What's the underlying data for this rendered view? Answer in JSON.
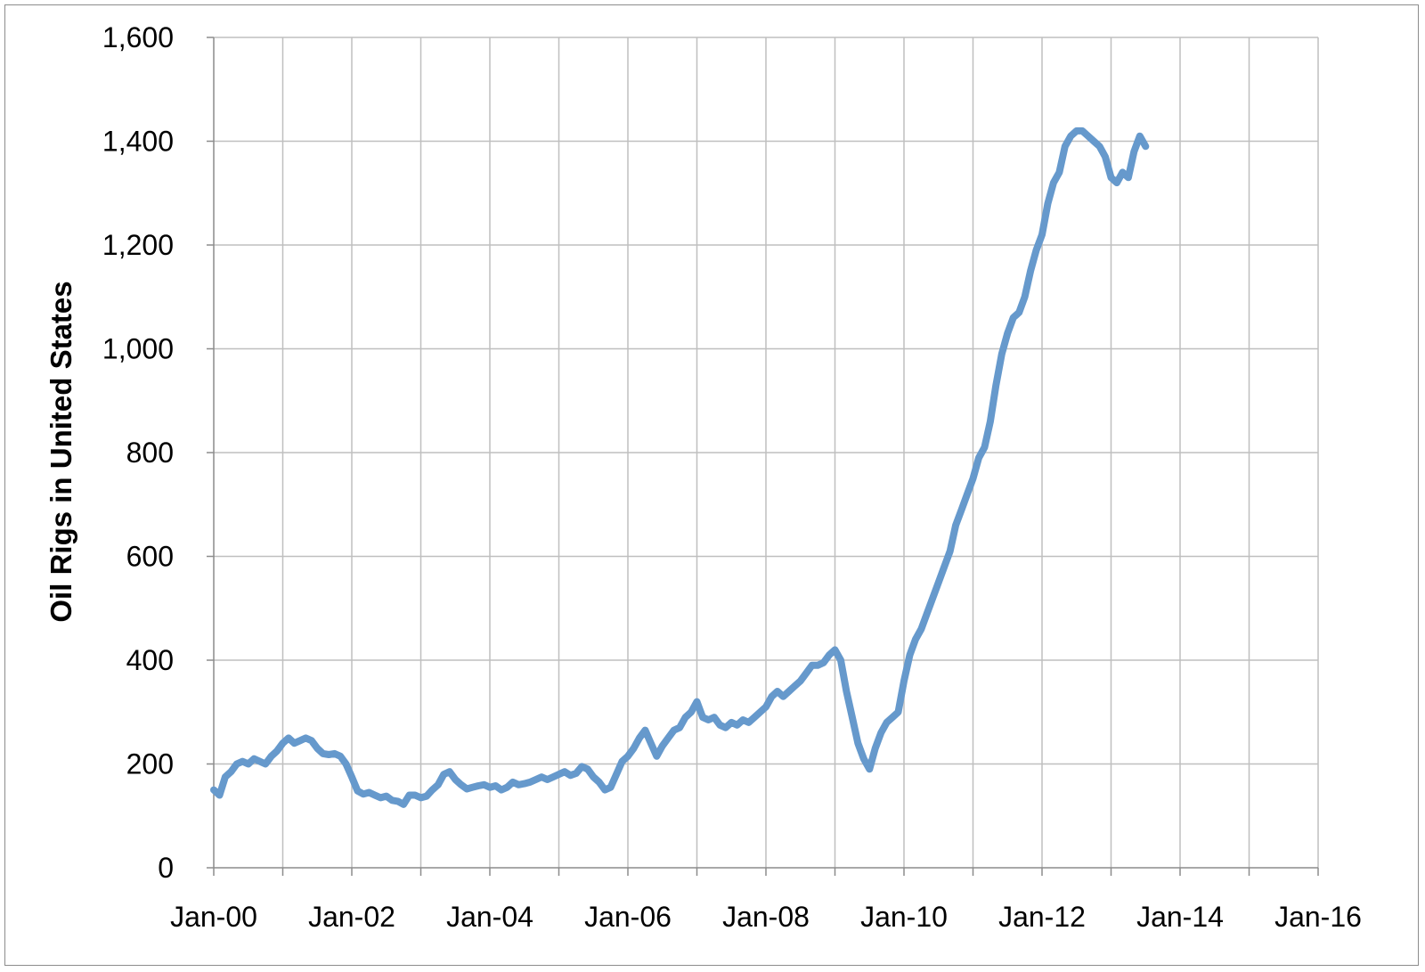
{
  "chart_data": {
    "type": "line",
    "title": "",
    "xlabel": "",
    "ylabel": "Oil Rigs in United States",
    "x_ticks": [
      "Jan-00",
      "Jan-02",
      "Jan-04",
      "Jan-06",
      "Jan-08",
      "Jan-10",
      "Jan-12",
      "Jan-14",
      "Jan-16"
    ],
    "y_ticks": [
      "0",
      "200",
      "400",
      "600",
      "800",
      "1,000",
      "1,200",
      "1,400",
      "1,600"
    ],
    "xlim": [
      "2000-01",
      "2016-01"
    ],
    "ylim": [
      0,
      1600
    ],
    "grid": true,
    "legend": "none",
    "line_color": "#6699cc",
    "series": [
      {
        "x": [
          "2000-01",
          "2000-02",
          "2000-03",
          "2000-04",
          "2000-05",
          "2000-06",
          "2000-07",
          "2000-08",
          "2000-09",
          "2000-10",
          "2000-11",
          "2000-12",
          "2001-01",
          "2001-02",
          "2001-03",
          "2001-04",
          "2001-05",
          "2001-06",
          "2001-07",
          "2001-08",
          "2001-09",
          "2001-10",
          "2001-11",
          "2001-12",
          "2002-01",
          "2002-02",
          "2002-03",
          "2002-04",
          "2002-05",
          "2002-06",
          "2002-07",
          "2002-08",
          "2002-09",
          "2002-10",
          "2002-11",
          "2002-12",
          "2003-01",
          "2003-02",
          "2003-03",
          "2003-04",
          "2003-05",
          "2003-06",
          "2003-07",
          "2003-08",
          "2003-09",
          "2003-10",
          "2003-11",
          "2003-12",
          "2004-01",
          "2004-02",
          "2004-03",
          "2004-04",
          "2004-05",
          "2004-06",
          "2004-07",
          "2004-08",
          "2004-09",
          "2004-10",
          "2004-11",
          "2004-12",
          "2005-01",
          "2005-02",
          "2005-03",
          "2005-04",
          "2005-05",
          "2005-06",
          "2005-07",
          "2005-08",
          "2005-09",
          "2005-10",
          "2005-11",
          "2005-12",
          "2006-01",
          "2006-02",
          "2006-03",
          "2006-04",
          "2006-05",
          "2006-06",
          "2006-07",
          "2006-08",
          "2006-09",
          "2006-10",
          "2006-11",
          "2006-12",
          "2007-01",
          "2007-02",
          "2007-03",
          "2007-04",
          "2007-05",
          "2007-06",
          "2007-07",
          "2007-08",
          "2007-09",
          "2007-10",
          "2007-11",
          "2007-12",
          "2008-01",
          "2008-02",
          "2008-03",
          "2008-04",
          "2008-05",
          "2008-06",
          "2008-07",
          "2008-08",
          "2008-09",
          "2008-10",
          "2008-11",
          "2008-12",
          "2009-01",
          "2009-02",
          "2009-03",
          "2009-04",
          "2009-05",
          "2009-06",
          "2009-07",
          "2009-08",
          "2009-09",
          "2009-10",
          "2009-11",
          "2009-12",
          "2010-01",
          "2010-02",
          "2010-03",
          "2010-04",
          "2010-05",
          "2010-06",
          "2010-07",
          "2010-08",
          "2010-09",
          "2010-10",
          "2010-11",
          "2010-12",
          "2011-01",
          "2011-02",
          "2011-03",
          "2011-04",
          "2011-05",
          "2011-06",
          "2011-07",
          "2011-08",
          "2011-09",
          "2011-10",
          "2011-11",
          "2011-12",
          "2012-01",
          "2012-02",
          "2012-03",
          "2012-04",
          "2012-05",
          "2012-06",
          "2012-07",
          "2012-08",
          "2012-09",
          "2012-10",
          "2012-11",
          "2012-12",
          "2013-01",
          "2013-02",
          "2013-03",
          "2013-04",
          "2013-05",
          "2013-06",
          "2013-07"
        ],
        "values": [
          150,
          140,
          175,
          185,
          200,
          205,
          200,
          210,
          205,
          200,
          215,
          225,
          240,
          250,
          240,
          245,
          250,
          245,
          230,
          220,
          218,
          220,
          215,
          200,
          175,
          148,
          142,
          145,
          140,
          135,
          138,
          130,
          128,
          122,
          140,
          140,
          135,
          138,
          150,
          160,
          180,
          185,
          170,
          160,
          152,
          155,
          158,
          160,
          155,
          158,
          150,
          155,
          165,
          160,
          162,
          165,
          170,
          175,
          170,
          175,
          180,
          185,
          178,
          182,
          195,
          190,
          175,
          165,
          150,
          155,
          180,
          205,
          215,
          230,
          250,
          265,
          240,
          215,
          235,
          250,
          265,
          270,
          290,
          300,
          320,
          290,
          285,
          290,
          275,
          270,
          280,
          275,
          285,
          280,
          290,
          300,
          310,
          330,
          340,
          330,
          340,
          350,
          360,
          375,
          390,
          390,
          395,
          410,
          420,
          400,
          340,
          290,
          240,
          210,
          190,
          230,
          260,
          280,
          290,
          300,
          360,
          410,
          440,
          460,
          490,
          520,
          550,
          580,
          610,
          660,
          690,
          720,
          750,
          790,
          810,
          860,
          930,
          990,
          1030,
          1060,
          1070,
          1100,
          1150,
          1190,
          1220,
          1280,
          1320,
          1340,
          1390,
          1410,
          1420,
          1420,
          1410,
          1400,
          1390,
          1370,
          1330,
          1320,
          1340,
          1330,
          1380,
          1410,
          1390
        ]
      }
    ]
  }
}
